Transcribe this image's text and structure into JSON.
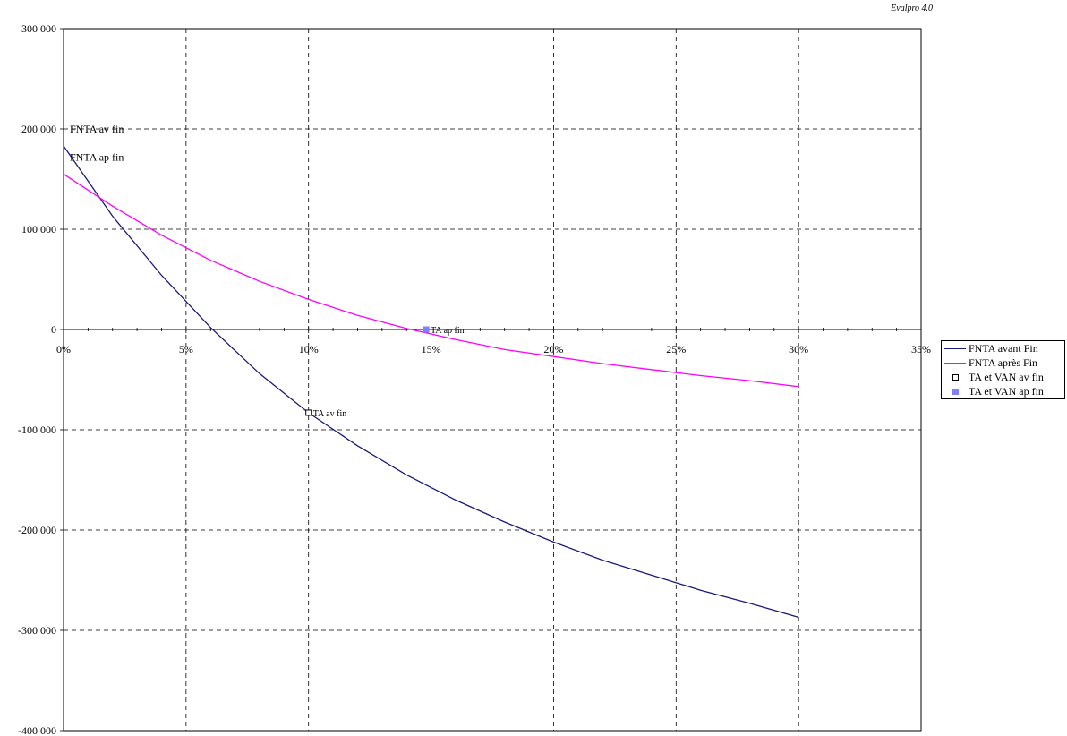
{
  "watermark": "Evalpro 4.0",
  "chart_data": {
    "type": "line",
    "xlim": [
      0,
      35
    ],
    "ylim": [
      -400000,
      300000
    ],
    "x_ticks": [
      0,
      5,
      10,
      15,
      20,
      25,
      30,
      35
    ],
    "x_tick_labels": [
      "0%",
      "5%",
      "10%",
      "15%",
      "20%",
      "25%",
      "30%",
      "35%"
    ],
    "y_ticks": [
      300000,
      200000,
      100000,
      0,
      -100000,
      -200000,
      -300000,
      -400000
    ],
    "y_tick_labels": [
      "300 000",
      "200 000",
      "100 000",
      "0",
      "-100 000",
      "-200 000",
      "-300 000",
      "-400 000"
    ],
    "grid": true,
    "legend_position": "right",
    "series": [
      {
        "name": "FNTA avant Fin",
        "color": "#1a1a7a",
        "x": [
          0,
          2,
          4,
          6,
          8,
          10,
          12,
          14,
          16,
          18,
          20,
          22,
          24,
          26,
          28,
          30
        ],
        "y": [
          183000,
          113000,
          54000,
          2000,
          -44000,
          -83000,
          -116000,
          -145000,
          -170000,
          -192000,
          -212000,
          -230000,
          -245000,
          -260000,
          -273000,
          -287000
        ]
      },
      {
        "name": "FNTA après Fin",
        "color": "#ff00ff",
        "x": [
          0,
          2,
          4,
          6,
          8,
          10,
          12,
          14,
          16,
          18,
          20,
          22,
          24,
          26,
          28,
          30
        ],
        "y": [
          155000,
          123000,
          94000,
          69000,
          48000,
          30000,
          14000,
          1000,
          -10000,
          -20000,
          -27000,
          -34000,
          -40000,
          -46000,
          -51000,
          -57000
        ]
      },
      {
        "name": "TA et VAN av fin",
        "type": "marker",
        "color": "#000000",
        "points": [
          {
            "x": 10,
            "y": -83000,
            "label": "TA av fin"
          }
        ]
      },
      {
        "name": "TA et VAN ap fin",
        "type": "marker",
        "color": "#8080ff",
        "points": [
          {
            "x": 14.8,
            "y": 0,
            "label": "TA ap fin"
          }
        ]
      }
    ],
    "annotations": [
      {
        "text": "FNTA av fin",
        "x": 0,
        "y": 183000
      },
      {
        "text": "FNTA ap fin",
        "x": 0,
        "y": 155000
      }
    ]
  }
}
